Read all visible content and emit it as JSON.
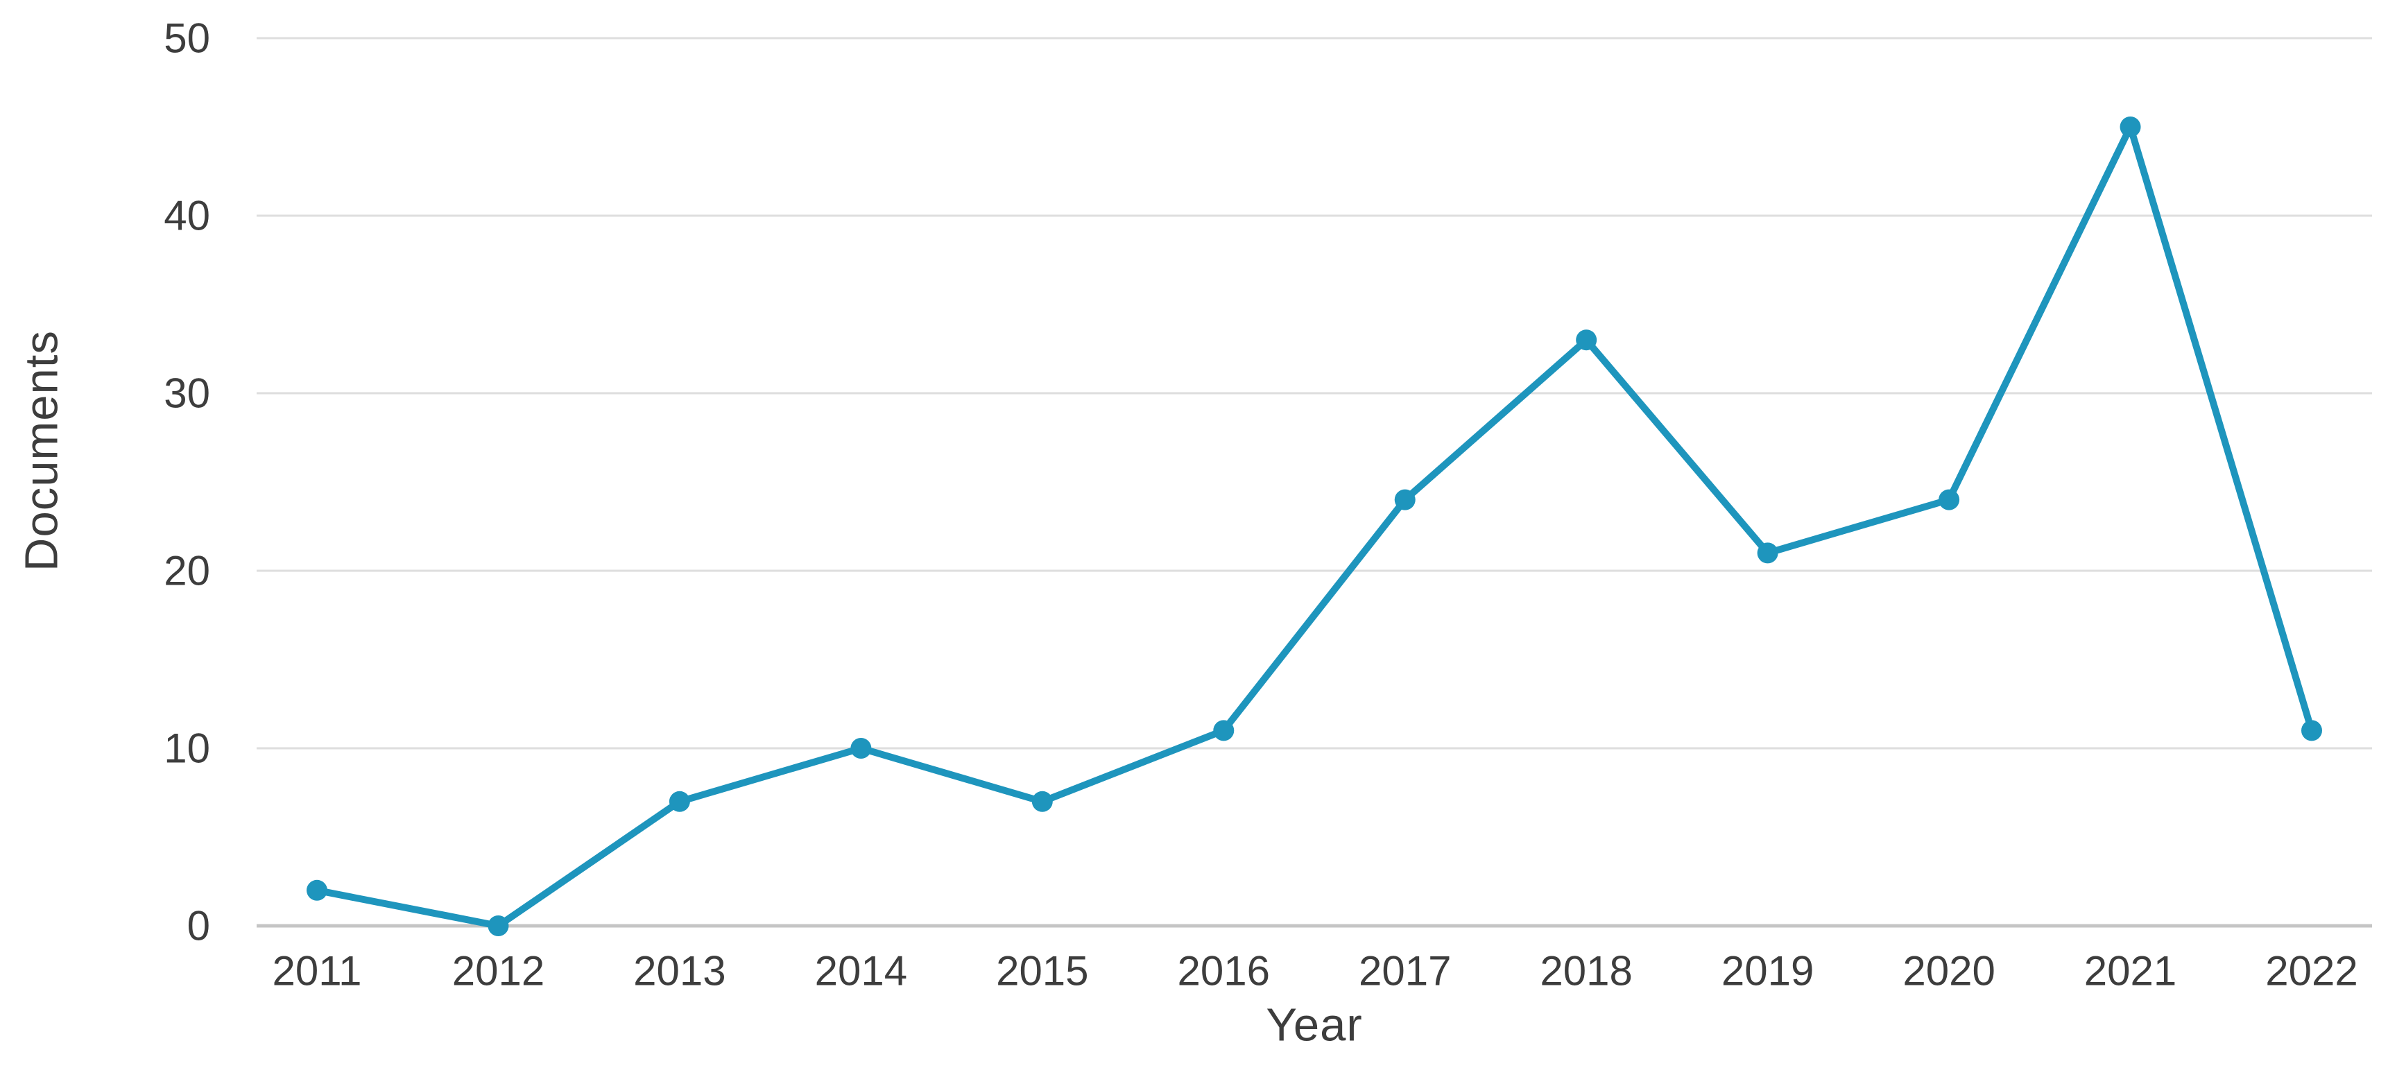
{
  "chart_data": {
    "type": "line",
    "title": "",
    "xlabel": "Year",
    "ylabel": "Documents",
    "categories": [
      "2011",
      "2012",
      "2013",
      "2014",
      "2015",
      "2016",
      "2017",
      "2018",
      "2019",
      "2020",
      "2021",
      "2022"
    ],
    "series": [
      {
        "name": "Documents",
        "values": [
          2,
          0,
          7,
          10,
          7,
          11,
          24,
          33,
          21,
          24,
          45,
          11
        ]
      }
    ],
    "ylim": [
      0,
      50
    ],
    "yticks": [
      0,
      10,
      20,
      30,
      40,
      50
    ],
    "grid": "horizontal",
    "legend_position": "none",
    "colors": {
      "line": "#1e95bd",
      "marker": "#1e95bd",
      "gridline": "#dedede",
      "zero_line": "#c5c5c5",
      "text": "#3d3d3d",
      "background": "#ffffff"
    }
  }
}
